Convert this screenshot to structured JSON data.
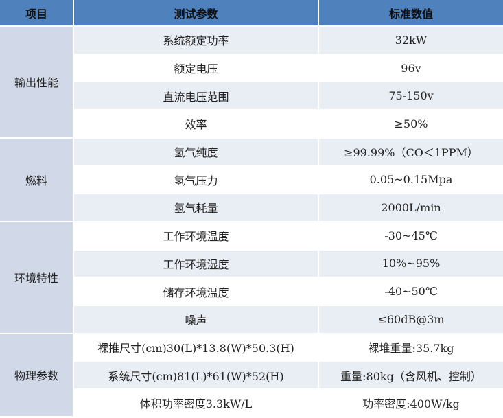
{
  "header": {
    "col1": "项目",
    "col2": "测试参数",
    "col3": "标准数值"
  },
  "groups": [
    {
      "name": "输出性能",
      "rows": [
        {
          "param": "系统额定功率",
          "value": "32kW"
        },
        {
          "param": "额定电压",
          "value": "96v"
        },
        {
          "param": "直流电压范围",
          "value": "75-150v"
        },
        {
          "param": "效率",
          "value": "≥50%"
        }
      ]
    },
    {
      "name": "燃料",
      "rows": [
        {
          "param": "氢气纯度",
          "value": "≥99.99%（CO＜1PPM）"
        },
        {
          "param": "氢气压力",
          "value": "0.05~0.15Mpa"
        },
        {
          "param": "氢气耗量",
          "value": "2000L/min"
        }
      ]
    },
    {
      "name": "环境特性",
      "rows": [
        {
          "param": "工作环境温度",
          "value": "-30~45℃"
        },
        {
          "param": "工作环境湿度",
          "value": "10%~95%"
        },
        {
          "param": "储存环境温度",
          "value": "-40~50℃"
        },
        {
          "param": "噪声",
          "value": "≤60dB@3m"
        }
      ]
    },
    {
      "name": "物理参数",
      "rows": [
        {
          "param": "裸推尺寸(cm)30(L)*13.8(W)*50.3(H)",
          "value": "裸堆重量:35.7kg"
        },
        {
          "param": "系统尺寸(cm)81(L)*61(W)*52(H)",
          "value": "重量:80kg（含风机、控制）"
        },
        {
          "param": "体积功率密度3.3kW/L",
          "value": "功率密度:400W/kg"
        }
      ]
    }
  ]
}
